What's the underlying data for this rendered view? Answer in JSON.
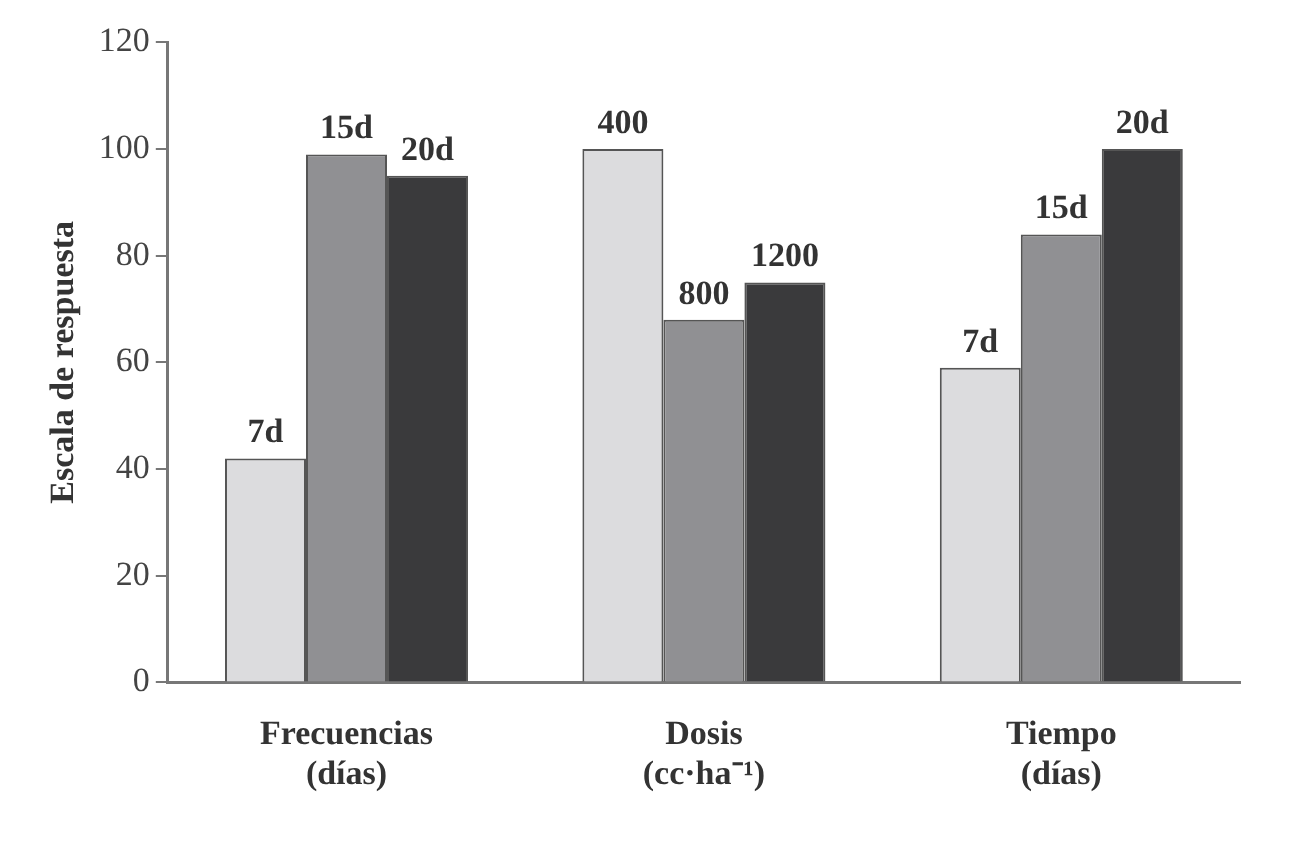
{
  "chart_data": {
    "type": "bar",
    "ylabel": "Escala de respuesta",
    "categories": [
      "Frecuencias\n(días)",
      "Dosis\n(cc·ha⁻¹)",
      "Tiempo\n(días)"
    ],
    "series": [
      {
        "color": "#dcdcde",
        "values": [
          42,
          100,
          59
        ]
      },
      {
        "color": "#909093",
        "values": [
          99,
          68,
          84
        ]
      },
      {
        "color": "#3a3a3c",
        "values": [
          95,
          75,
          100
        ]
      }
    ],
    "annotations": [
      "7d",
      "15d",
      "20d",
      "400",
      "800",
      "1200",
      "7d",
      "15d",
      "20d"
    ],
    "ylim": [
      0,
      120
    ],
    "yticks": [
      0,
      20,
      40,
      60,
      80,
      100,
      120
    ],
    "grid": false,
    "legend": false
  }
}
